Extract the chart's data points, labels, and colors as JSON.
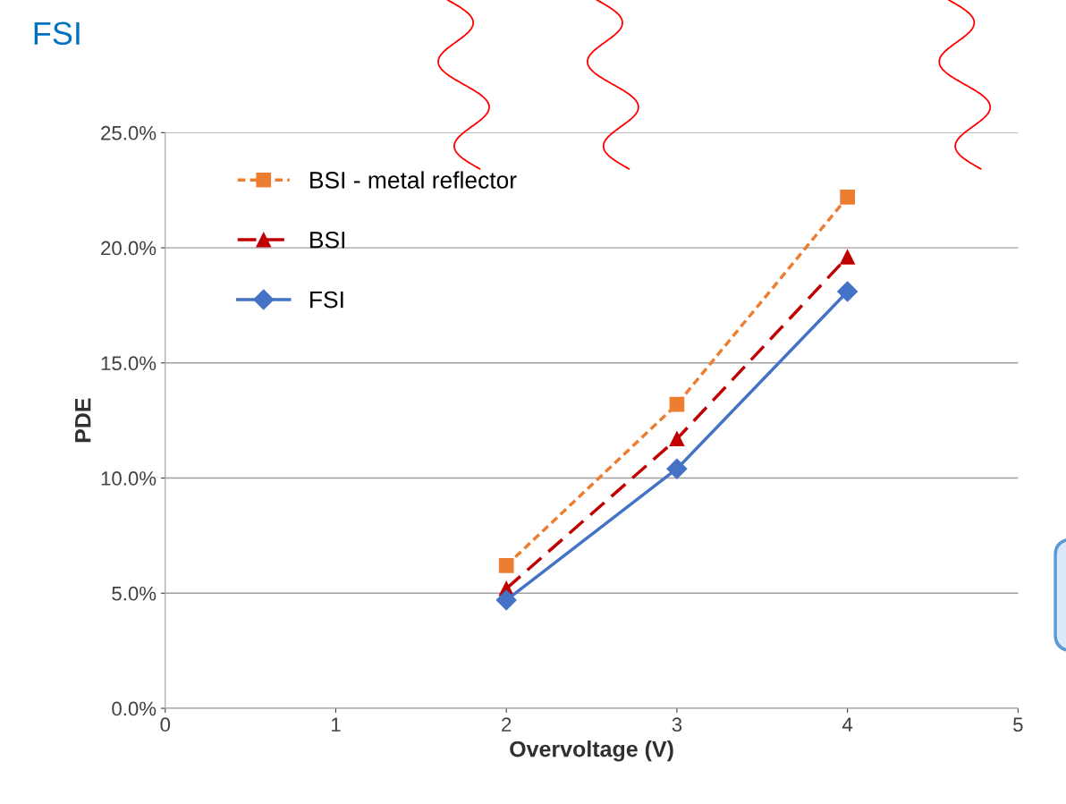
{
  "chart_data": {
    "type": "line",
    "title": "FSI",
    "xlabel": "Overvoltage (V)",
    "ylabel": "PDE",
    "x": [
      2,
      3,
      4
    ],
    "series": [
      {
        "name": "BSI - metal reflector",
        "color": "#ed7d31",
        "marker": "square",
        "line_style": "dotted",
        "values": [
          6.2,
          13.2,
          22.2
        ]
      },
      {
        "name": "BSI",
        "color": "#c00000",
        "marker": "triangle",
        "line_style": "dashed",
        "values": [
          5.2,
          11.7,
          19.6
        ]
      },
      {
        "name": "FSI",
        "color": "#4472c4",
        "marker": "diamond",
        "line_style": "solid",
        "values": [
          4.7,
          10.4,
          18.1
        ]
      }
    ],
    "xlim": [
      0,
      5
    ],
    "xticks": [
      0,
      1,
      2,
      3,
      4,
      5
    ],
    "ylim": [
      0,
      25
    ],
    "yticks": [
      {
        "value": 0,
        "label": "0.0%"
      },
      {
        "value": 5,
        "label": "5.0%"
      },
      {
        "value": 10,
        "label": "10.0%"
      },
      {
        "value": 15,
        "label": "15.0%"
      },
      {
        "value": 20,
        "label": "20.0%"
      },
      {
        "value": 25,
        "label": "25.0%"
      }
    ],
    "grid": "y",
    "legend": "top left"
  }
}
